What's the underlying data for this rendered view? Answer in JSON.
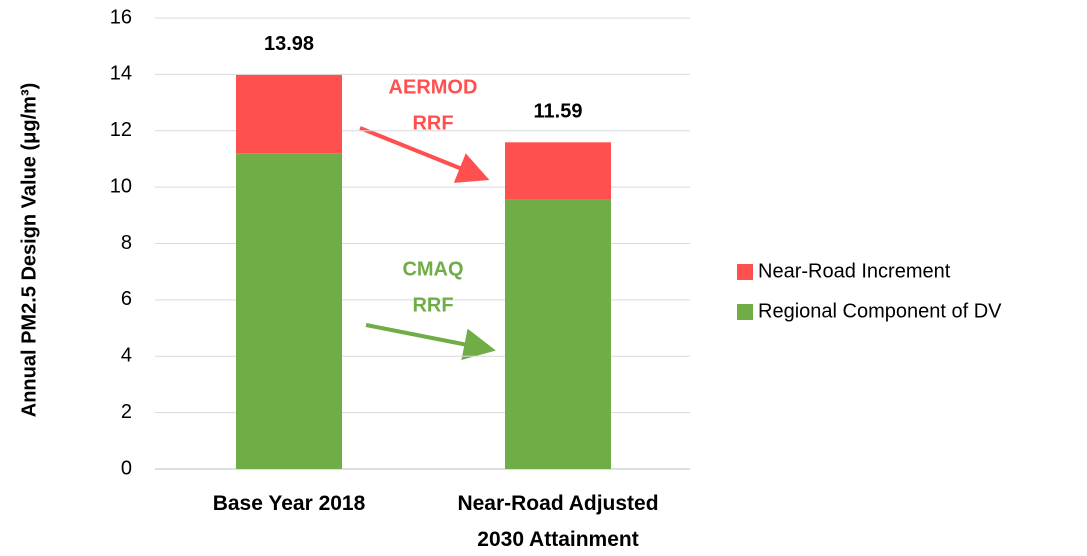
{
  "chart_data": {
    "type": "stacked-bar",
    "y_axis_label": "Annual PM2.5 Design Value (μg/m³)",
    "categories": [
      "Base Year 2018",
      "Near-Road Adjusted 2030 Attainment"
    ],
    "series": [
      {
        "name": "Regional Component of DV",
        "color": "#70ad47",
        "values": [
          11.2,
          9.55
        ]
      },
      {
        "name": "Near-Road Increment",
        "color": "#ff5050",
        "values": [
          2.78,
          2.04
        ]
      }
    ],
    "totals": [
      13.98,
      11.59
    ],
    "annotations": [
      {
        "lines": [
          "AERMOD",
          "RRF"
        ],
        "color": "#ff5050"
      },
      {
        "lines": [
          "CMAQ",
          "RRF"
        ],
        "color": "#70ad47"
      }
    ],
    "ylim": [
      0,
      16
    ],
    "yticks": [
      0,
      2,
      4,
      6,
      8,
      10,
      12,
      14,
      16
    ],
    "grid": true
  }
}
